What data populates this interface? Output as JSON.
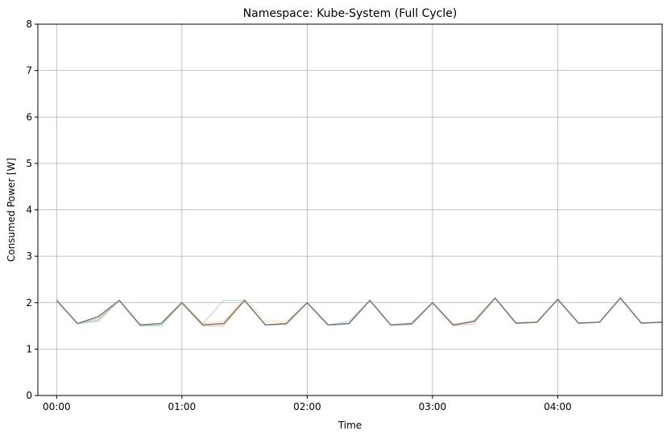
{
  "chart_data": {
    "type": "line",
    "title": "Namespace: Kube-System (Full Cycle)",
    "xlabel": "Time",
    "ylabel": "Consumed Power [W]",
    "ylim": [
      0,
      8
    ],
    "xlim": [
      -9,
      290
    ],
    "grid": true,
    "legend": "none",
    "y_ticks": [
      "0",
      "1",
      "2",
      "3",
      "4",
      "5",
      "6",
      "7",
      "8"
    ],
    "x_ticks": [
      {
        "value": 0,
        "label": "00:00"
      },
      {
        "value": 60,
        "label": "01:00"
      },
      {
        "value": 120,
        "label": "02:00"
      },
      {
        "value": 180,
        "label": "03:00"
      },
      {
        "value": 240,
        "label": "04:00"
      }
    ],
    "x": [
      0,
      10,
      20,
      30,
      40,
      50,
      60,
      70,
      80,
      90,
      100,
      110,
      120,
      130,
      140,
      150,
      160,
      170,
      180,
      190,
      200,
      210,
      220,
      230,
      240,
      250,
      260,
      270,
      280,
      290
    ],
    "series": [
      {
        "color": "#808080",
        "alpha": 1.0,
        "values": [
          2.05,
          1.55,
          1.7,
          2.05,
          1.52,
          1.55,
          2.0,
          1.52,
          1.55,
          2.05,
          1.52,
          1.55,
          2.0,
          1.52,
          1.55,
          2.05,
          1.52,
          1.55,
          2.0,
          1.52,
          1.6,
          2.1,
          1.56,
          1.58,
          2.07,
          1.56,
          1.58,
          2.1,
          1.56,
          1.58
        ]
      },
      {
        "color": "#f4a582",
        "alpha": 0.55,
        "values": [
          2.05,
          1.55,
          1.65,
          2.05,
          1.5,
          1.55,
          2.0,
          1.5,
          1.5,
          2.05,
          1.52,
          1.53,
          2.0,
          1.52,
          1.55,
          2.05,
          1.52,
          1.53,
          2.0,
          1.5,
          1.55,
          2.1,
          1.55,
          1.57,
          2.07,
          1.56,
          1.58,
          2.1,
          1.56,
          1.58
        ]
      },
      {
        "color": "#9ecae1",
        "alpha": 0.55,
        "values": [
          2.05,
          1.55,
          1.62,
          2.05,
          1.5,
          1.5,
          2.0,
          1.55,
          2.05,
          2.05,
          1.52,
          1.55,
          2.0,
          1.52,
          1.6,
          2.05,
          1.52,
          1.52,
          2.0,
          1.52,
          1.6,
          2.1,
          1.56,
          1.58,
          2.07,
          1.55,
          1.58,
          2.1,
          1.56,
          1.58
        ]
      },
      {
        "color": "#fdd49e",
        "alpha": 0.55,
        "values": [
          2.05,
          1.55,
          1.7,
          2.05,
          1.52,
          1.55,
          2.02,
          1.55,
          1.6,
          2.1,
          1.6,
          1.6,
          2.0,
          1.52,
          1.55,
          2.05,
          1.52,
          1.55,
          2.0,
          1.52,
          1.6,
          2.1,
          1.56,
          1.58,
          2.07,
          1.56,
          1.58,
          2.1,
          1.56,
          1.56
        ]
      },
      {
        "color": "#a1d99b",
        "alpha": 0.55,
        "values": [
          2.05,
          1.55,
          1.6,
          2.05,
          1.52,
          1.5,
          2.0,
          1.52,
          1.55,
          2.05,
          1.52,
          1.55,
          2.0,
          1.52,
          1.55,
          2.05,
          1.52,
          1.55,
          2.0,
          1.52,
          1.6,
          2.1,
          1.56,
          1.58,
          2.07,
          1.56,
          1.58,
          2.1,
          1.56,
          1.58
        ]
      }
    ]
  }
}
